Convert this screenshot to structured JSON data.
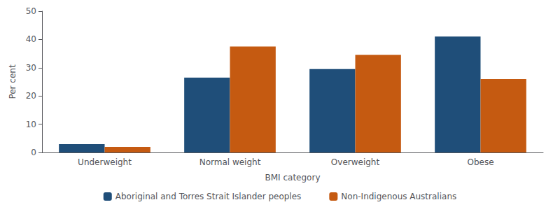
{
  "chart_data": {
    "type": "bar",
    "categories": [
      "Underweight",
      "Normal weight",
      "Overweight",
      "Obese"
    ],
    "series": [
      {
        "name": "Aboriginal and Torres Strait Islander peoples",
        "color": "#1F4E79",
        "values": [
          3.0,
          26.5,
          29.5,
          41.0
        ]
      },
      {
        "name": "Non-Indigenous Australians",
        "color": "#C55A11",
        "values": [
          2.0,
          37.5,
          34.5,
          26.0
        ]
      }
    ],
    "xlabel": "BMI category",
    "ylabel": "Per cent",
    "ylim": [
      0,
      50
    ],
    "yticks": [
      0,
      10,
      20,
      30,
      40,
      50
    ],
    "grid": false,
    "legend": "bottom"
  }
}
